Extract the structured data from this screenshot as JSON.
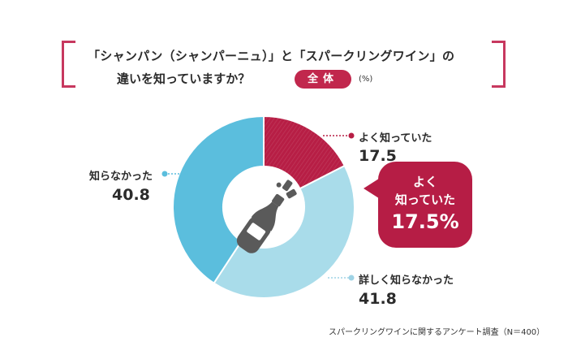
{
  "title": {
    "line1": "「シャンパン（シャンパーニュ）」と「スパークリングワイン」の",
    "line2": "違いを知っていますか？",
    "badge": "全体",
    "unit": "(%)"
  },
  "callout": {
    "line1": "よく",
    "line2": "知っていた",
    "value": "17.5%"
  },
  "footnote": "スパークリングワインに関するアンケート調査（N＝400）",
  "colors": {
    "accent": "#c7385f",
    "segment_1": "#b71e45",
    "segment_2": "#a9dcea",
    "segment_3": "#5bbedd"
  },
  "icons": [
    "champagne-bottle-icon"
  ],
  "chart_data": {
    "type": "pie",
    "variant": "donut",
    "categories": [
      "よく知っていた",
      "詳しく知らなかった",
      "知らなかった"
    ],
    "values": [
      17.5,
      41.8,
      40.8
    ],
    "value_labels": [
      "17.5",
      "41.8",
      "40.8"
    ],
    "colors": [
      "#b71e45",
      "#a9dcea",
      "#5bbedd"
    ],
    "start_angle_deg": 0,
    "direction": "clockwise"
  }
}
